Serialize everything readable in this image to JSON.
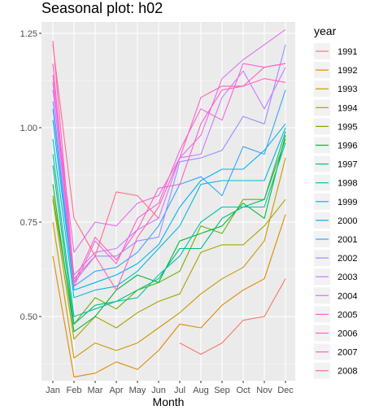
{
  "chart_data": {
    "type": "line",
    "title": "Seasonal plot: h02",
    "xlabel": "Month",
    "ylabel": "",
    "categories": [
      "Jan",
      "Feb",
      "Mar",
      "Apr",
      "May",
      "Jun",
      "Jul",
      "Aug",
      "Sep",
      "Oct",
      "Nov",
      "Dec"
    ],
    "y_ticks": [
      "0.50",
      "0.75",
      "1.00",
      "1.25"
    ],
    "y_tick_values": [
      0.5,
      0.75,
      1.0,
      1.25
    ],
    "ylim": [
      0.33,
      1.28
    ],
    "legend_title": "year",
    "legend_position": "right",
    "grid": true,
    "series": [
      {
        "name": "1991",
        "color": "#F8766D",
        "values": [
          null,
          null,
          null,
          null,
          null,
          null,
          0.43,
          0.4,
          0.43,
          0.49,
          0.5,
          0.6
        ]
      },
      {
        "name": "1992",
        "color": "#E58700",
        "values": [
          0.66,
          0.34,
          0.35,
          0.38,
          0.36,
          0.41,
          0.48,
          0.47,
          0.53,
          0.57,
          0.6,
          0.77
        ]
      },
      {
        "name": "1993",
        "color": "#C99800",
        "values": [
          0.75,
          0.39,
          0.43,
          0.41,
          0.43,
          0.47,
          0.51,
          0.56,
          0.6,
          0.63,
          0.7,
          0.92
        ]
      },
      {
        "name": "1994",
        "color": "#A3A500",
        "values": [
          0.81,
          0.44,
          0.5,
          0.47,
          0.51,
          0.54,
          0.56,
          0.67,
          0.69,
          0.69,
          0.74,
          0.81
        ]
      },
      {
        "name": "1995",
        "color": "#6BB100",
        "values": [
          0.82,
          0.48,
          0.55,
          0.52,
          0.57,
          0.59,
          0.62,
          0.74,
          0.72,
          0.81,
          0.81,
          0.97
        ]
      },
      {
        "name": "1996",
        "color": "#00BA38",
        "values": [
          0.85,
          0.46,
          0.5,
          0.57,
          0.61,
          0.59,
          0.7,
          0.72,
          0.74,
          0.8,
          0.76,
          0.98
        ]
      },
      {
        "name": "1997",
        "color": "#00BF7D",
        "values": [
          0.9,
          0.48,
          0.53,
          0.54,
          0.57,
          0.6,
          0.68,
          0.68,
          0.76,
          0.79,
          0.81,
          0.99
        ]
      },
      {
        "name": "1998",
        "color": "#00C0AF",
        "values": [
          0.93,
          0.5,
          0.52,
          0.54,
          0.55,
          0.61,
          0.66,
          0.75,
          0.79,
          0.79,
          0.79,
          0.96
        ]
      },
      {
        "name": "1999",
        "color": "#00BCD8",
        "values": [
          0.97,
          0.55,
          0.57,
          0.58,
          0.62,
          0.68,
          0.74,
          0.85,
          0.86,
          0.86,
          0.86,
          1.0
        ]
      },
      {
        "name": "2000",
        "color": "#00B0F6",
        "values": [
          1.02,
          0.57,
          0.59,
          0.61,
          0.64,
          0.69,
          0.79,
          0.86,
          0.89,
          0.89,
          0.94,
          1.01
        ]
      },
      {
        "name": "2001",
        "color": "#35A2FF",
        "values": [
          1.05,
          0.58,
          0.62,
          0.63,
          0.67,
          0.74,
          0.85,
          0.87,
          0.82,
          0.95,
          0.93,
          1.1
        ]
      },
      {
        "name": "2002",
        "color": "#9590FF",
        "values": [
          1.07,
          0.59,
          0.66,
          0.66,
          0.7,
          0.71,
          0.91,
          0.92,
          0.94,
          1.03,
          1.01,
          1.22
        ]
      },
      {
        "name": "2003",
        "color": "#C77CFF",
        "values": [
          1.1,
          0.61,
          0.67,
          0.68,
          0.73,
          0.76,
          0.92,
          0.93,
          1.08,
          1.15,
          1.05,
          1.16
        ]
      },
      {
        "name": "2004",
        "color": "#E76BF3",
        "values": [
          1.12,
          0.67,
          0.75,
          0.74,
          0.8,
          0.82,
          0.92,
          0.98,
          1.13,
          1.18,
          1.22,
          1.26
        ]
      },
      {
        "name": "2005",
        "color": "#FA62DB",
        "values": [
          1.14,
          0.58,
          0.7,
          0.64,
          0.76,
          0.8,
          0.94,
          1.05,
          1.02,
          1.17,
          1.16,
          1.17
        ]
      },
      {
        "name": "2006",
        "color": "#FF61C3",
        "values": [
          1.17,
          0.59,
          0.71,
          0.65,
          0.73,
          0.84,
          0.85,
          1.01,
          1.1,
          1.11,
          1.13,
          1.12
        ]
      },
      {
        "name": "2007",
        "color": "#FF62BC",
        "values": [
          1.23,
          0.6,
          0.66,
          0.57,
          0.71,
          0.79,
          0.92,
          1.08,
          1.11,
          1.11,
          1.16,
          1.17
        ]
      },
      {
        "name": "2008",
        "color": "#FF6C91",
        "values": [
          1.22,
          0.76,
          0.66,
          0.83,
          0.82,
          0.76,
          null,
          null,
          null,
          null,
          null,
          null
        ]
      }
    ]
  }
}
